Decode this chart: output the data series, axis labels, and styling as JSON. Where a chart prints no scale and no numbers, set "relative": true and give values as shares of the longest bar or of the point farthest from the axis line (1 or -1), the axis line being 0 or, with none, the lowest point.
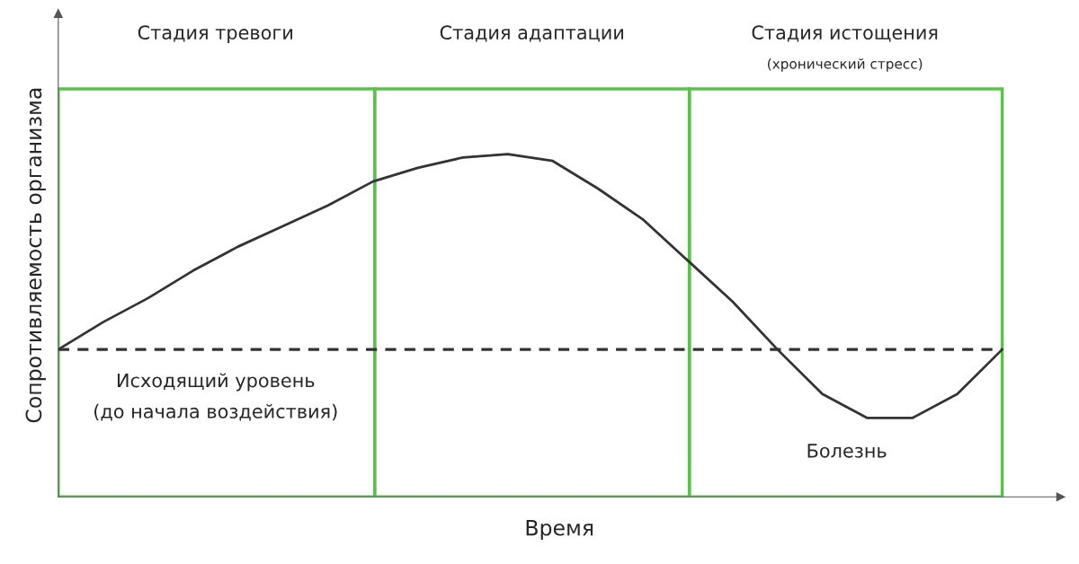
{
  "chart_data": {
    "type": "line",
    "relative": true,
    "xlabel": "Время",
    "ylabel": "Сопротивляемость организма",
    "categories": [
      null,
      null,
      null,
      null,
      null,
      null,
      null,
      null,
      null,
      null,
      null,
      null,
      null,
      null,
      null,
      null,
      null,
      null,
      null,
      null,
      null,
      null
    ],
    "series": [
      {
        "color": "#333333",
        "values": [
          0.43,
          0.51,
          0.58,
          0.66,
          0.73,
          0.79,
          0.85,
          0.92,
          0.96,
          0.99,
          1.0,
          0.98,
          0.9,
          0.81,
          0.69,
          0.57,
          0.43,
          0.3,
          0.23,
          0.23,
          0.3,
          0.43
        ]
      }
    ],
    "ref_lines": [
      {
        "axis": "y",
        "value": 0.43,
        "color": "#333333",
        "line_style": "dashed"
      }
    ],
    "annotations": [
      "Стадия тревоги",
      "Стадия адаптации",
      "Стадия истощения",
      "(хронический стресс)",
      "Исходящий уровень\n(до начала воздействия)",
      "Болезнь"
    ],
    "legend": false
  }
}
